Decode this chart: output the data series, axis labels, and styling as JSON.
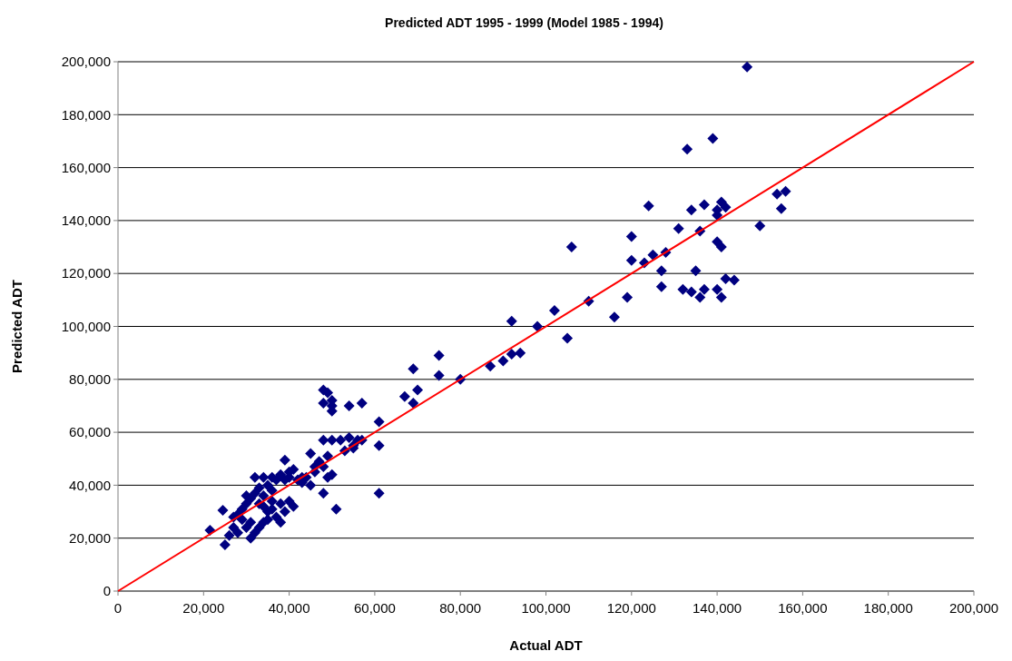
{
  "chart_data": {
    "type": "scatter",
    "title": "Predicted ADT 1995 - 1999 (Model 1985 - 1994)",
    "xlabel": "Actual ADT",
    "ylabel": "Predicted ADT",
    "xlim": [
      0,
      200000
    ],
    "ylim": [
      0,
      200000
    ],
    "xticks": [
      {
        "value": 0,
        "label": "0"
      },
      {
        "value": 20000,
        "label": "20,000"
      },
      {
        "value": 40000,
        "label": "40,000"
      },
      {
        "value": 60000,
        "label": "60,000"
      },
      {
        "value": 80000,
        "label": "80,000"
      },
      {
        "value": 100000,
        "label": "100,000"
      },
      {
        "value": 120000,
        "label": "120,000"
      },
      {
        "value": 140000,
        "label": "140,000"
      },
      {
        "value": 160000,
        "label": "160,000"
      },
      {
        "value": 180000,
        "label": "180,000"
      },
      {
        "value": 200000,
        "label": "200,000"
      }
    ],
    "yticks": [
      {
        "value": 0,
        "label": "0"
      },
      {
        "value": 20000,
        "label": "20,000"
      },
      {
        "value": 40000,
        "label": "40,000"
      },
      {
        "value": 60000,
        "label": "60,000"
      },
      {
        "value": 80000,
        "label": "80,000"
      },
      {
        "value": 100000,
        "label": "100,000"
      },
      {
        "value": 120000,
        "label": "120,000"
      },
      {
        "value": 140000,
        "label": "140,000"
      },
      {
        "value": 160000,
        "label": "160,000"
      },
      {
        "value": 180000,
        "label": "180,000"
      },
      {
        "value": 200000,
        "label": "200,000"
      }
    ],
    "grid": "y",
    "series": [
      {
        "color": "#000080",
        "marker": "diamond",
        "x": [
          147000,
          133000,
          139000,
          124000,
          134000,
          137000,
          140000,
          140000,
          141000,
          142000,
          131000,
          136000,
          154000,
          156000,
          155000,
          150000,
          120000,
          106000,
          120000,
          123000,
          125000,
          128000,
          127000,
          135000,
          140000,
          141000,
          119000,
          127000,
          132000,
          134000,
          137000,
          136000,
          140000,
          141000,
          142000,
          144000,
          116000,
          110000,
          102000,
          98000,
          105000,
          92000,
          94000,
          92000,
          90000,
          87000,
          80000,
          75000,
          75000,
          69000,
          70000,
          69000,
          67000,
          48000,
          49000,
          48000,
          50000,
          50000,
          50000,
          54000,
          57000,
          61000,
          61000,
          61000,
          51000,
          57000,
          55000,
          54000,
          52000,
          53000,
          50000,
          48000,
          48000,
          49000,
          48000,
          50000,
          49000,
          46000,
          47000,
          45000,
          45000,
          44000,
          43000,
          42000,
          40000,
          39000,
          40000,
          41000,
          38000,
          37000,
          36000,
          36000,
          35000,
          34000,
          33000,
          32000,
          34000,
          32000,
          31000,
          30000,
          30000,
          29000,
          28000,
          27000,
          29000,
          30000,
          31000,
          32000,
          31000,
          33000,
          34000,
          35000,
          36000,
          37000,
          38000,
          39000,
          40000,
          41000,
          38000,
          34000,
          36000,
          26000,
          25000,
          27000,
          24500,
          21500,
          28000,
          35000,
          33000,
          39000,
          43000,
          55000,
          56000,
          46000
        ],
        "values": [
          198000,
          167000,
          171000,
          145500,
          144000,
          146000,
          142000,
          144000,
          147000,
          145000,
          137000,
          136000,
          150000,
          151000,
          144500,
          138000,
          134000,
          130000,
          125000,
          124000,
          127000,
          128000,
          121000,
          121000,
          132000,
          130000,
          111000,
          115000,
          114000,
          113000,
          114000,
          111000,
          114000,
          111000,
          118000,
          117500,
          103500,
          109500,
          106000,
          100000,
          95500,
          102000,
          90000,
          89500,
          87000,
          85000,
          80000,
          89000,
          81500,
          84000,
          76000,
          71000,
          73500,
          76000,
          75000,
          71000,
          72000,
          70000,
          68000,
          70000,
          71000,
          64000,
          55000,
          37000,
          31000,
          57000,
          55000,
          58000,
          57000,
          53000,
          57000,
          57000,
          37000,
          51000,
          47000,
          44000,
          43000,
          47000,
          49000,
          52000,
          40000,
          43000,
          41000,
          42000,
          43000,
          49500,
          45000,
          46000,
          44000,
          42000,
          43000,
          38000,
          40000,
          36000,
          39000,
          43000,
          43000,
          37000,
          35000,
          36000,
          33000,
          31000,
          29000,
          28000,
          27000,
          24000,
          26000,
          22000,
          20000,
          24000,
          26000,
          30000,
          31000,
          28000,
          26000,
          30000,
          34000,
          32000,
          33000,
          32000,
          34000,
          21000,
          17500,
          24000,
          30500,
          23000,
          22000,
          27000,
          33000,
          42000,
          43000,
          54000,
          57000,
          45000
        ]
      },
      {
        "type": "line",
        "color": "#ff0000",
        "marker": "none",
        "line_style": "solid",
        "x": [
          0,
          200000
        ],
        "values": [
          0,
          200000
        ]
      }
    ]
  }
}
